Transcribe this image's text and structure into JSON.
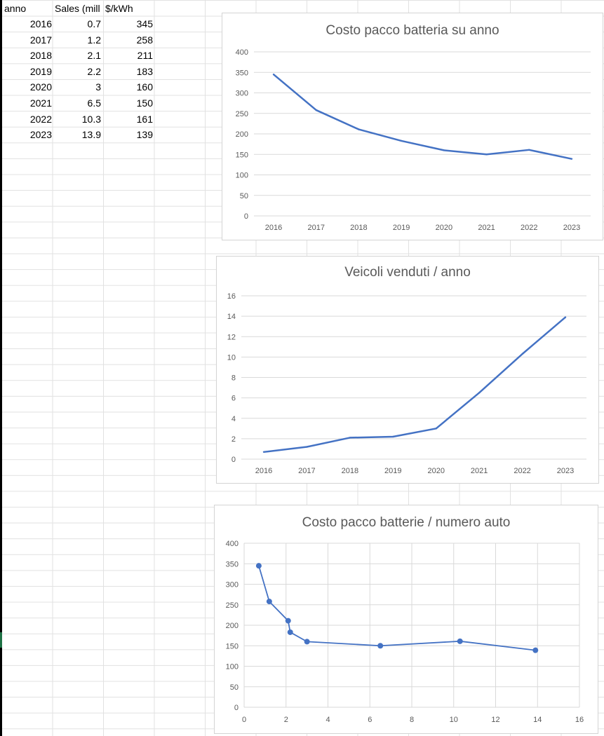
{
  "spreadsheet": {
    "headers": [
      "anno",
      "Sales (mill",
      "$/kWh"
    ],
    "rows": [
      [
        "2016",
        "0.7",
        "345"
      ],
      [
        "2017",
        "1.2",
        "258"
      ],
      [
        "2018",
        "2.1",
        "211"
      ],
      [
        "2019",
        "2.2",
        "183"
      ],
      [
        "2020",
        "3",
        "160"
      ],
      [
        "2021",
        "6.5",
        "150"
      ],
      [
        "2022",
        "10.3",
        "161"
      ],
      [
        "2023",
        "13.9",
        "139"
      ]
    ]
  },
  "colors": {
    "series": "#4472c4",
    "grid": "#d9d9d9",
    "text": "#595959"
  },
  "chart_data": [
    {
      "type": "line",
      "title": "Costo pacco batteria su anno",
      "categories": [
        "2016",
        "2017",
        "2018",
        "2019",
        "2020",
        "2021",
        "2022",
        "2023"
      ],
      "series": [
        {
          "values": [
            345,
            258,
            211,
            183,
            160,
            150,
            161,
            139
          ]
        }
      ],
      "ylim": [
        0,
        400
      ],
      "yticks": [
        0,
        50,
        100,
        150,
        200,
        250,
        300,
        350,
        400
      ],
      "xlabel": "",
      "ylabel": "",
      "grid": true,
      "legend": "none"
    },
    {
      "type": "line",
      "title": "Veicoli venduti / anno",
      "categories": [
        "2016",
        "2017",
        "2018",
        "2019",
        "2020",
        "2021",
        "2022",
        "2023"
      ],
      "series": [
        {
          "values": [
            0.7,
            1.2,
            2.1,
            2.2,
            3,
            6.5,
            10.3,
            13.9
          ]
        }
      ],
      "ylim": [
        0,
        16
      ],
      "yticks": [
        0,
        2,
        4,
        6,
        8,
        10,
        12,
        14,
        16
      ],
      "xlabel": "",
      "ylabel": "",
      "grid": true,
      "legend": "none"
    },
    {
      "type": "scatter",
      "title": "Costo pacco batterie / numero auto",
      "series": [
        {
          "x": [
            0.7,
            1.2,
            2.1,
            2.2,
            3,
            6.5,
            10.3,
            13.9
          ],
          "y": [
            345,
            258,
            211,
            183,
            160,
            150,
            161,
            139
          ]
        }
      ],
      "xlim": [
        0,
        16
      ],
      "xticks": [
        0,
        2,
        4,
        6,
        8,
        10,
        12,
        14,
        16
      ],
      "ylim": [
        0,
        400
      ],
      "yticks": [
        0,
        50,
        100,
        150,
        200,
        250,
        300,
        350,
        400
      ],
      "markers": true,
      "lines": true,
      "xlabel": "",
      "ylabel": "",
      "grid": true,
      "legend": "none"
    }
  ]
}
